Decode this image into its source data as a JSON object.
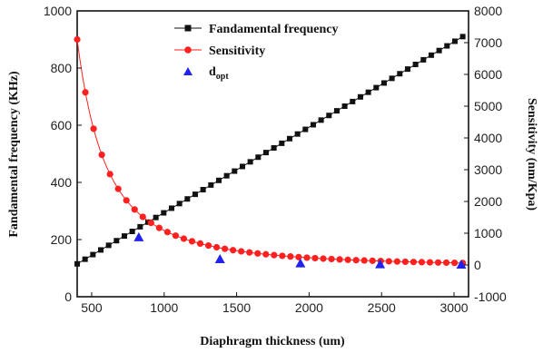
{
  "chart_data": {
    "type": "scatter",
    "xlabel": "Diaphragm thickness (um)",
    "ylabel_left": "Fandamental frequency (KHz)",
    "ylabel_right": "Sensitivity (nm/Kpa)",
    "xlim": [
      400,
      3100
    ],
    "ylim_left": [
      0,
      1000
    ],
    "ylim_right": [
      -1000,
      8000
    ],
    "xticks": [
      500,
      1000,
      1500,
      2000,
      2500,
      3000
    ],
    "yticks_left": [
      0,
      200,
      400,
      600,
      800,
      1000
    ],
    "yticks_right": [
      -1000,
      0,
      1000,
      2000,
      3000,
      4000,
      5000,
      6000,
      7000,
      8000
    ],
    "grid": false,
    "legend_position": "top-center",
    "legend": {
      "frequency": "Fandamental frequency",
      "sensitivity": "Sensitivity",
      "dopt_main": "d",
      "dopt_sub": "opt"
    },
    "series": [
      {
        "name": "Fandamental frequency",
        "axis": "left",
        "marker": "square",
        "color": "#111111",
        "x": [
          400,
          3060
        ],
        "y": [
          115,
          910
        ],
        "points": 50
      },
      {
        "name": "Sensitivity",
        "axis": "right",
        "marker": "circle",
        "color": "#ff2020",
        "curve": "a/x^2 + c",
        "x_range": [
          400,
          3060
        ],
        "y_at_400": 7100,
        "y_asymptote": -60,
        "points": 48
      },
      {
        "name": "dopt",
        "axis": "right",
        "marker": "triangle",
        "color": "#2222ee",
        "x": [
          825,
          1385,
          1940,
          2490,
          3050
        ],
        "y": [
          860,
          170,
          40,
          10,
          0
        ]
      }
    ]
  }
}
